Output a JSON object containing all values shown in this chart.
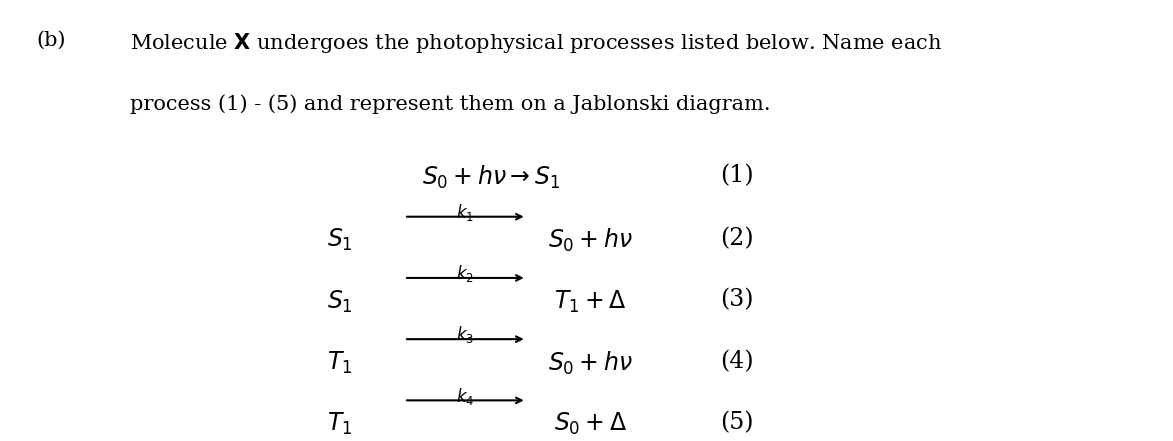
{
  "title_b": "(b)",
  "title_text1": "Molecule $\\mathbf{X}$ undergoes the photophysical processes listed below. Name each",
  "title_text2": "process (1) - (5) and represent them on a Jablonski diagram.",
  "background_color": "#ffffff",
  "text_color": "#000000",
  "equations": [
    {
      "lhs": "$S_0 + h\\nu \\rightarrow S_1$",
      "number": "(1)",
      "has_arrow_over": false,
      "k_label": ""
    },
    {
      "lhs": "$S_1$",
      "arrow": true,
      "k_label": "$k_1$",
      "rhs": "$S_0 + h\\nu$",
      "number": "(2)"
    },
    {
      "lhs": "$S_1$",
      "arrow": true,
      "k_label": "$k_2$",
      "rhs": "$T_1 + \\Delta$",
      "number": "(3)"
    },
    {
      "lhs": "$T_1$",
      "arrow": true,
      "k_label": "$k_3$",
      "rhs": "$S_0 + h\\nu$",
      "number": "(4)"
    },
    {
      "lhs": "$T_1$",
      "arrow": true,
      "k_label": "$k_4$",
      "rhs": "$S_0 + \\Delta$",
      "number": "(5)"
    }
  ],
  "eq1_full": "$S_0 + h\\nu \\rightarrow S_1$",
  "eq2_lhs": "$S_1$",
  "eq2_rhs": "$S_0 + h\\nu$",
  "eq2_k": "$k_1$",
  "eq3_lhs": "$S_1$",
  "eq3_rhs": "$T_1 + \\Delta$",
  "eq3_k": "$k_2$",
  "eq4_lhs": "$T_1$",
  "eq4_rhs": "$S_0 + h\\nu$",
  "eq4_k": "$k_3$",
  "eq5_lhs": "$T_1$",
  "eq5_rhs": "$S_0 + \\Delta$",
  "eq5_k": "$k_4$",
  "font_size_header": 15,
  "font_size_eq": 17,
  "font_size_k": 12,
  "font_family": "DejaVu Serif"
}
